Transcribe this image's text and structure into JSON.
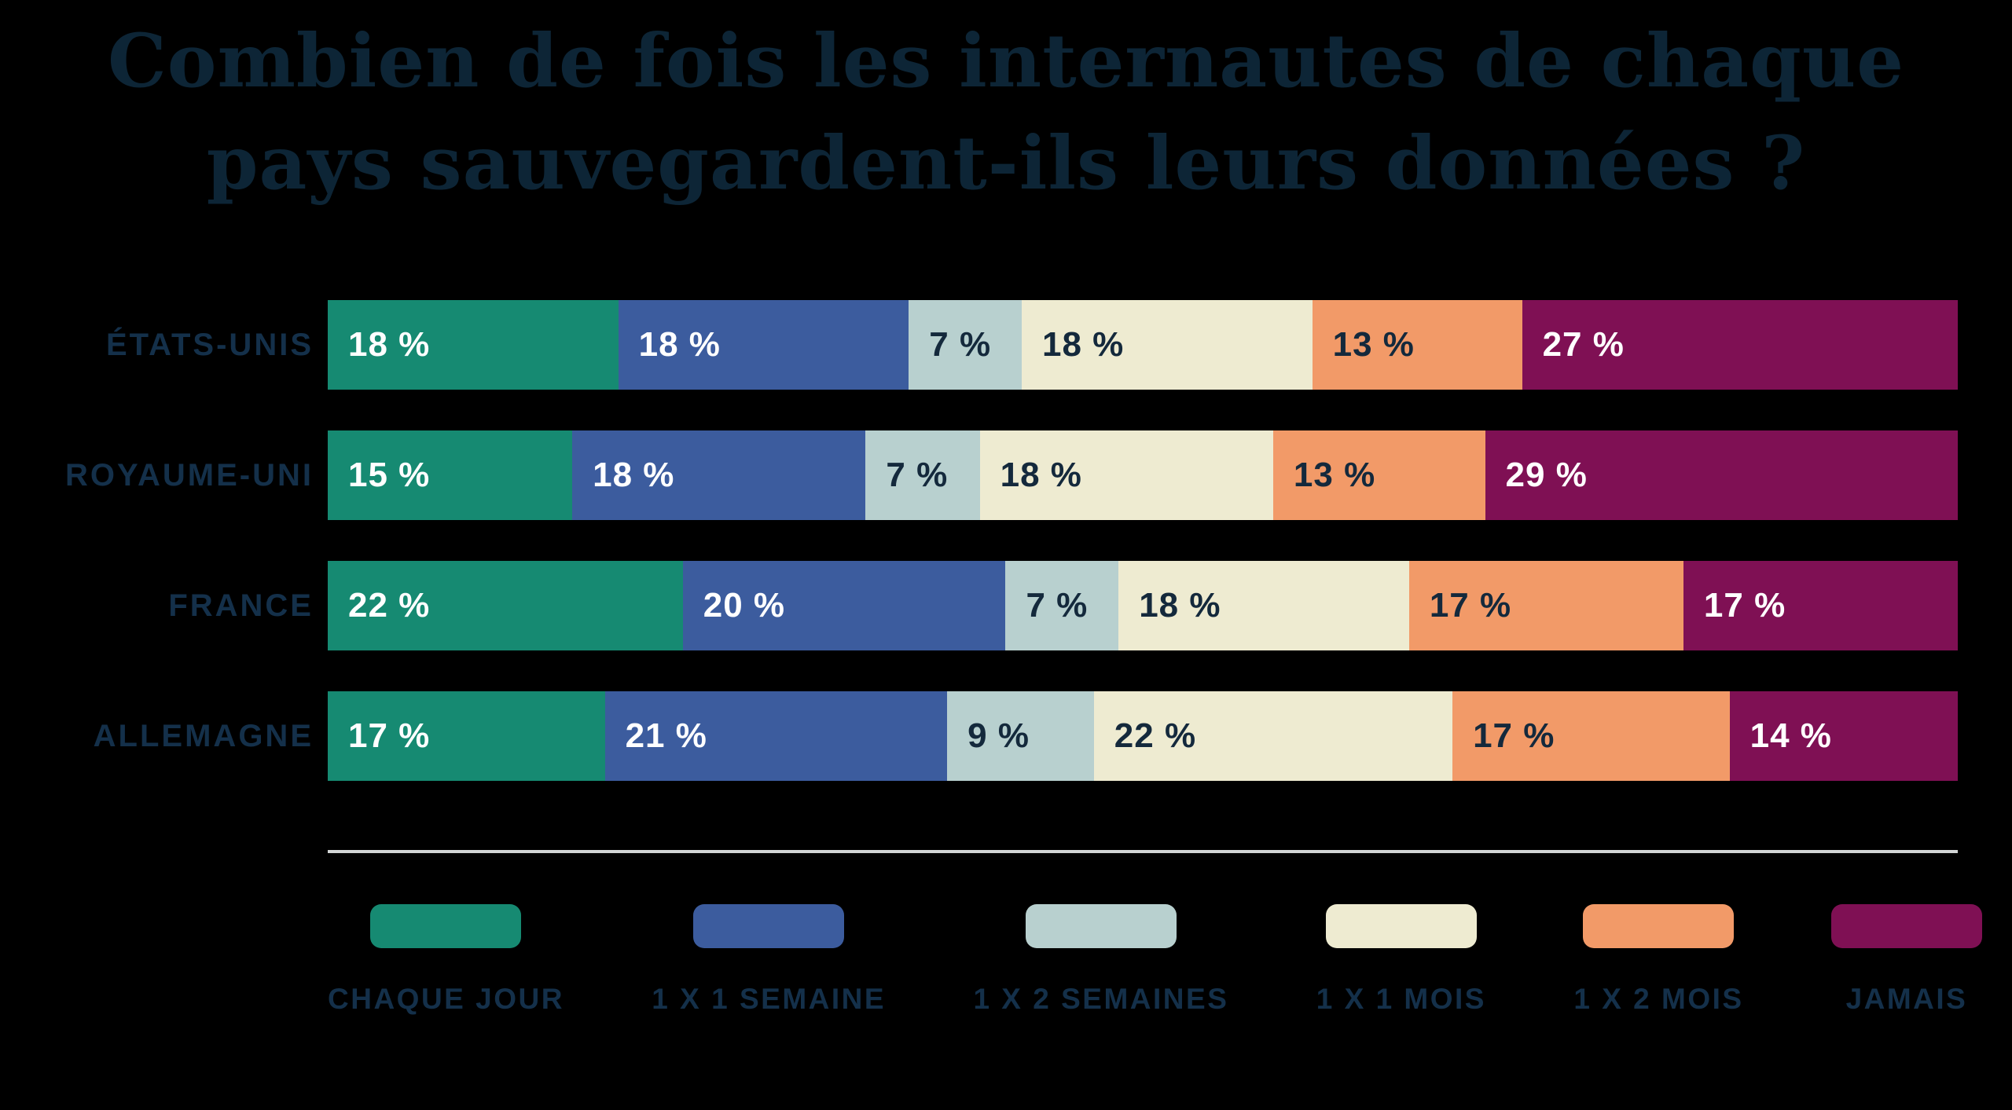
{
  "title": {
    "line1": "Combien de fois les internautes de chaque",
    "line2": "pays sauvegardent-ils leurs données ?"
  },
  "colors": {
    "background": "#000000",
    "title_text": "#0d2536",
    "label_text": "#14304a",
    "value_text_light": "#ffffff",
    "value_text_dark": "#14293c",
    "divider": "#d2d5d5"
  },
  "chart_data": {
    "type": "bar",
    "orientation": "horizontal",
    "stacked": true,
    "unit": "%",
    "value_label_format": "{v} %",
    "legend_position": "bottom",
    "grid": false,
    "categories": [
      "ÉTATS-UNIS",
      "ROYAUME-UNI",
      "FRANCE",
      "ALLEMAGNE"
    ],
    "series": [
      {
        "name": "CHAQUE JOUR",
        "color": "#168a72",
        "value_text": "light",
        "values": [
          18,
          15,
          22,
          17
        ]
      },
      {
        "name": "1 X 1 SEMAINE",
        "color": "#3c5c9e",
        "value_text": "light",
        "values": [
          18,
          18,
          20,
          21
        ]
      },
      {
        "name": "1 X 2 SEMAINES",
        "color": "#b8d0cf",
        "value_text": "dark",
        "values": [
          7,
          7,
          7,
          9
        ]
      },
      {
        "name": "1 X 1 MOIS",
        "color": "#eeebd1",
        "value_text": "dark",
        "values": [
          18,
          18,
          18,
          22
        ]
      },
      {
        "name": "1 X 2 MOIS",
        "color": "#f29a68",
        "value_text": "dark",
        "values": [
          13,
          13,
          17,
          17
        ]
      },
      {
        "name": "JAMAIS",
        "color": "#7f1054",
        "value_text": "light",
        "values": [
          27,
          29,
          17,
          14
        ]
      }
    ]
  }
}
